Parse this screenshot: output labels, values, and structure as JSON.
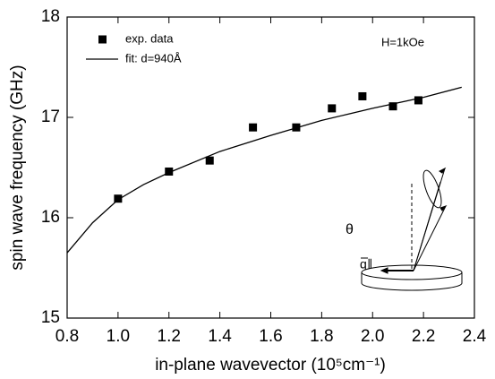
{
  "chart_data": {
    "type": "scatter",
    "x_label": "in-plane wavevector (10⁵cm⁻¹)",
    "y_label": "spin wave frequency (GHz)",
    "xlim": [
      0.8,
      2.4
    ],
    "ylim": [
      15,
      18
    ],
    "xticks": [
      0.8,
      {
        "value": 1,
        "label": "1.0"
      },
      1.2,
      1.4,
      1.6,
      1.8,
      {
        "value": 2,
        "label": "2.0"
      },
      2.2,
      2.4
    ],
    "yticks": [
      15,
      16,
      17,
      18
    ],
    "annotations": [
      "H=1kOe",
      "θ",
      "q∥"
    ],
    "series": [
      {
        "name": "exp. data",
        "color": "#000000",
        "style": "marker",
        "x": [
          1.0,
          1.2,
          1.36,
          1.53,
          1.7,
          1.84,
          1.96,
          2.08,
          2.18
        ],
        "values": [
          16.19,
          16.46,
          16.57,
          16.9,
          16.9,
          17.09,
          17.21,
          17.11,
          17.17
        ]
      },
      {
        "name": "fit: d=940Å",
        "color": "#000000",
        "style": "line",
        "x": [
          0.8,
          0.9,
          1.0,
          1.1,
          1.2,
          1.4,
          1.6,
          1.8,
          2.0,
          2.2,
          2.35
        ],
        "values": [
          15.65,
          15.95,
          16.18,
          16.33,
          16.45,
          16.66,
          16.82,
          16.97,
          17.09,
          17.2,
          17.3
        ]
      }
    ]
  }
}
